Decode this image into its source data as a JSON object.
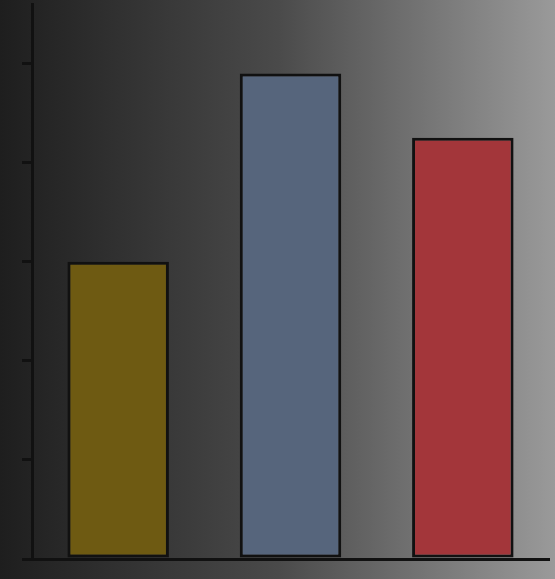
{
  "chart_data": {
    "type": "bar",
    "categories": [
      null,
      null,
      null
    ],
    "values": [
      3.0,
      4.9,
      4.25
    ],
    "colors": [
      "#6e5a12",
      "#56657c",
      "#a3363a"
    ],
    "ylim": [
      0,
      5.6
    ],
    "yticks": [
      0,
      1,
      2,
      3,
      4,
      5
    ],
    "grid": false,
    "tick_labels": false
  }
}
